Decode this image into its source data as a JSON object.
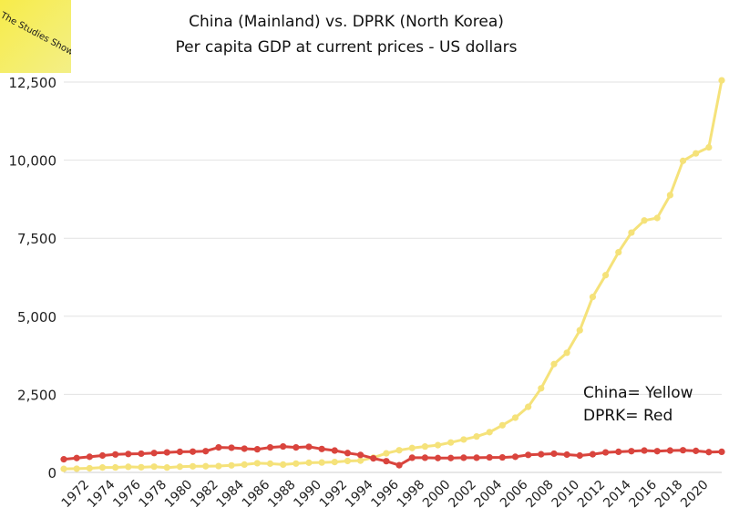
{
  "badge": {
    "text": "The Studies Show"
  },
  "chart_data": {
    "type": "line",
    "title": "China (Mainland) vs. DPRK (North Korea)",
    "subtitle": "Per capita GDP at current prices - US dollars",
    "xlabel": "",
    "ylabel": "",
    "ylim": [
      0,
      12500
    ],
    "yticks": [
      0,
      2500,
      5000,
      7500,
      10000,
      12500
    ],
    "ytick_labels": [
      "0",
      "2,500",
      "5,000",
      "7,500",
      "10,000",
      "12,500"
    ],
    "xticks": [
      1972,
      1974,
      1976,
      1978,
      1980,
      1982,
      1984,
      1986,
      1988,
      1990,
      1992,
      1994,
      1996,
      1998,
      2000,
      2002,
      2004,
      2006,
      2008,
      2010,
      2012,
      2014,
      2016,
      2018,
      2020
    ],
    "grid": "horizontal",
    "x": [
      1970,
      1971,
      1972,
      1973,
      1974,
      1975,
      1976,
      1977,
      1978,
      1979,
      1980,
      1981,
      1982,
      1983,
      1984,
      1985,
      1986,
      1987,
      1988,
      1989,
      1990,
      1991,
      1992,
      1993,
      1994,
      1995,
      1996,
      1997,
      1998,
      1999,
      2000,
      2001,
      2002,
      2003,
      2004,
      2005,
      2006,
      2007,
      2008,
      2009,
      2010,
      2011,
      2012,
      2013,
      2014,
      2015,
      2016,
      2017,
      2018,
      2019,
      2020,
      2021
    ],
    "series": [
      {
        "name": "China",
        "color": "#f5e27a",
        "values": [
          113,
          119,
          132,
          157,
          160,
          178,
          165,
          185,
          156,
          183,
          195,
          197,
          203,
          225,
          251,
          294,
          281,
          251,
          283,
          310,
          317,
          333,
          366,
          377,
          473,
          610,
          709,
          781,
          828,
          873,
          959,
          1053,
          1149,
          1289,
          1509,
          1753,
          2099,
          2693,
          3468,
          3832,
          4550,
          5618,
          6316,
          7051,
          7679,
          8067,
          8148,
          8879,
          9977,
          10217,
          10409,
          12556
        ]
      },
      {
        "name": "DPRK",
        "color": "#d9443d",
        "values": [
          420,
          460,
          500,
          540,
          575,
          590,
          600,
          620,
          640,
          660,
          665,
          680,
          800,
          790,
          760,
          740,
          800,
          830,
          800,
          820,
          750,
          700,
          620,
          560,
          450,
          360,
          230,
          470,
          470,
          460,
          460,
          470,
          470,
          480,
          480,
          500,
          560,
          580,
          600,
          570,
          540,
          580,
          640,
          660,
          680,
          700,
          680,
          700,
          710,
          690,
          650,
          660
        ]
      }
    ],
    "legend_lines": [
      "China= Yellow",
      "DPRK= Red"
    ],
    "legend_placement": "right"
  }
}
